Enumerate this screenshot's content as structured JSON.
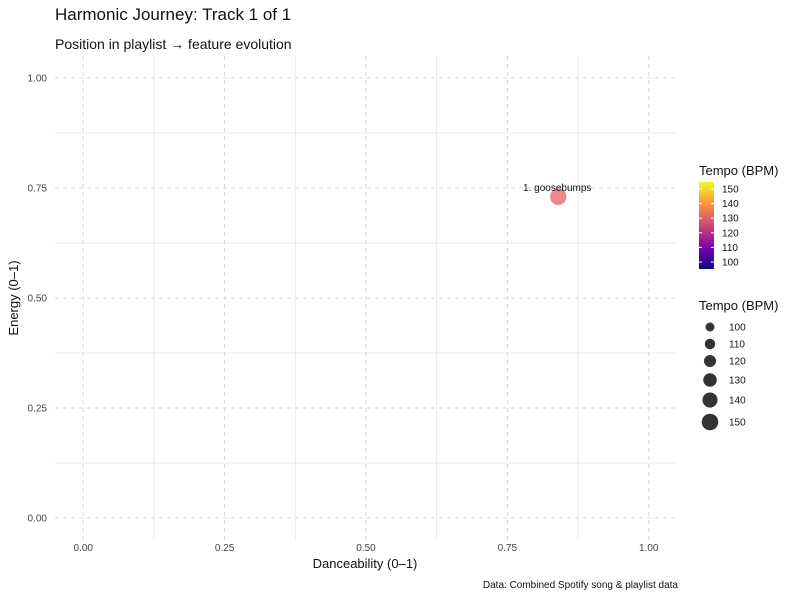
{
  "chart_data": {
    "type": "scatter",
    "title": "Harmonic Journey: Track 1 of 1",
    "subtitle": "Position in playlist → feature evolution",
    "caption": "Data: Combined Spotify song & playlist data",
    "xlabel": "Danceability (0–1)",
    "ylabel": "Energy (0–1)",
    "xlim": [
      -0.05,
      1.05
    ],
    "ylim": [
      -0.05,
      1.05
    ],
    "x_ticks": [
      "0.00",
      "0.25",
      "0.50",
      "0.75",
      "1.00"
    ],
    "y_ticks": [
      "0.00",
      "0.25",
      "0.50",
      "0.75",
      "1.00"
    ],
    "grid": true,
    "points": [
      {
        "label": "1. goosebumps",
        "x": 0.84,
        "y": 0.73,
        "tempo": 130,
        "color": "#e8737d"
      }
    ],
    "legend_color": {
      "title": "Tempo (BPM)",
      "ticks": [
        "150",
        "140",
        "130",
        "120",
        "110",
        "100"
      ],
      "gradient": [
        "#0d0887",
        "#7e03a8",
        "#cc4778",
        "#f89540",
        "#f0f921"
      ]
    },
    "legend_size": {
      "title": "Tempo (BPM)",
      "items": [
        "100",
        "110",
        "120",
        "130",
        "140",
        "150"
      ]
    },
    "legend_placement": "right"
  }
}
